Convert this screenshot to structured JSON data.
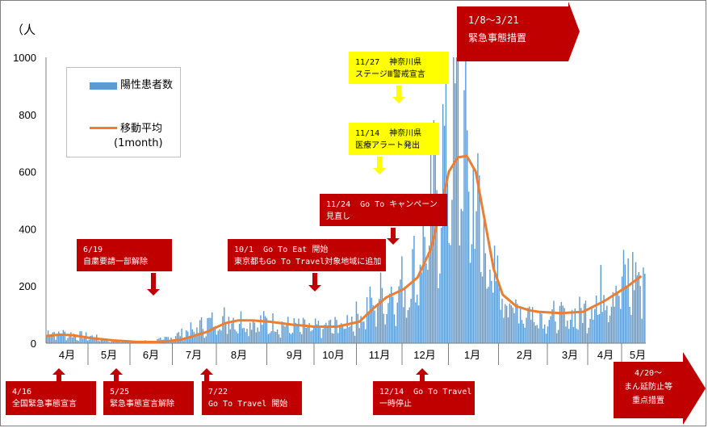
{
  "chart_data": {
    "type": "bar",
    "ylabel": "（人",
    "ylim": [
      0,
      1000
    ],
    "yticks": [
      "0",
      "200",
      "400",
      "600",
      "800",
      "1000"
    ],
    "month_labels": [
      "4月",
      "5月",
      "6月",
      "7月",
      "8月",
      "9月",
      "10月",
      "11月",
      "12月",
      "1月",
      "2月",
      "3月",
      "4月",
      "5月"
    ],
    "series": [
      {
        "name": "陽性患者数",
        "kind": "bar",
        "color": "#5b9bd5"
      },
      {
        "name": "移動平均",
        "kind": "line",
        "color": "#ed7d31"
      }
    ],
    "legend": {
      "bar_label": "陽性患者数",
      "line_label1": "移動平均",
      "line_label2": "(1month)"
    },
    "daily_envelope": {
      "month_index": [
        0,
        0.5,
        1,
        1.5,
        2,
        2.5,
        3,
        3.5,
        4,
        4.5,
        5,
        5.5,
        6,
        6.5,
        7,
        7.5,
        8,
        8.25,
        8.5,
        8.75,
        9,
        9.2,
        9.4,
        9.6,
        9.8,
        10,
        10.5,
        11,
        11.5,
        12,
        12.5,
        13,
        13.3
      ],
      "level": [
        45,
        35,
        25,
        8,
        5,
        12,
        35,
        70,
        100,
        85,
        80,
        65,
        60,
        70,
        110,
        190,
        230,
        300,
        420,
        650,
        800,
        880,
        700,
        550,
        380,
        250,
        140,
        115,
        100,
        120,
        220,
        250,
        280
      ]
    },
    "moving_average": {
      "month_index": [
        0,
        0.3,
        0.6,
        1,
        1.5,
        2,
        2.5,
        3,
        3.3,
        3.6,
        4,
        4.3,
        4.6,
        5,
        5.5,
        6,
        6.5,
        7,
        7.3,
        7.6,
        8,
        8.3,
        8.6,
        8.8,
        9,
        9.2,
        9.4,
        9.6,
        9.8,
        10,
        10.2,
        10.5,
        10.8,
        11,
        11.5,
        12,
        12.5,
        13,
        13.3
      ],
      "values": [
        25,
        30,
        28,
        18,
        10,
        5,
        4,
        12,
        25,
        40,
        70,
        80,
        80,
        75,
        65,
        58,
        58,
        75,
        120,
        160,
        190,
        230,
        330,
        460,
        600,
        650,
        655,
        600,
        430,
        260,
        170,
        130,
        115,
        110,
        105,
        110,
        150,
        200,
        235
      ]
    }
  },
  "annotations": {
    "a1": {
      "line1": "1/8～3/21",
      "line2": "緊急事態措置"
    },
    "a2": {
      "line1": "11/27  神奈川県",
      "line2": "ステージⅢ警戒宣言"
    },
    "a3": {
      "line1": "11/14  神奈川県",
      "line2": "医療アラート発出"
    },
    "a4": {
      "line1": "11/24  Go To キャンペーン",
      "line2": "見直し"
    },
    "a5": {
      "line1": "6/19",
      "line2": "自粛要請一部解除"
    },
    "a6": {
      "line1": "10/1  Go To Eat 開始",
      "line2": "東京都もGo To Travel対象地域に追加"
    },
    "a7": {
      "line1": "4/16",
      "line2": "全国緊急事態宣言"
    },
    "a8": {
      "line1": "5/25",
      "line2": "緊急事態宣言解除"
    },
    "a9": {
      "line1": "7/22",
      "line2": "Go To Travel 開始"
    },
    "a10": {
      "line1": "12/14  Go To Travel",
      "line2": "一時停止"
    },
    "a11": {
      "line1": "4/20～",
      "line2": "まん延防止等",
      "line3": "重点措置"
    }
  }
}
